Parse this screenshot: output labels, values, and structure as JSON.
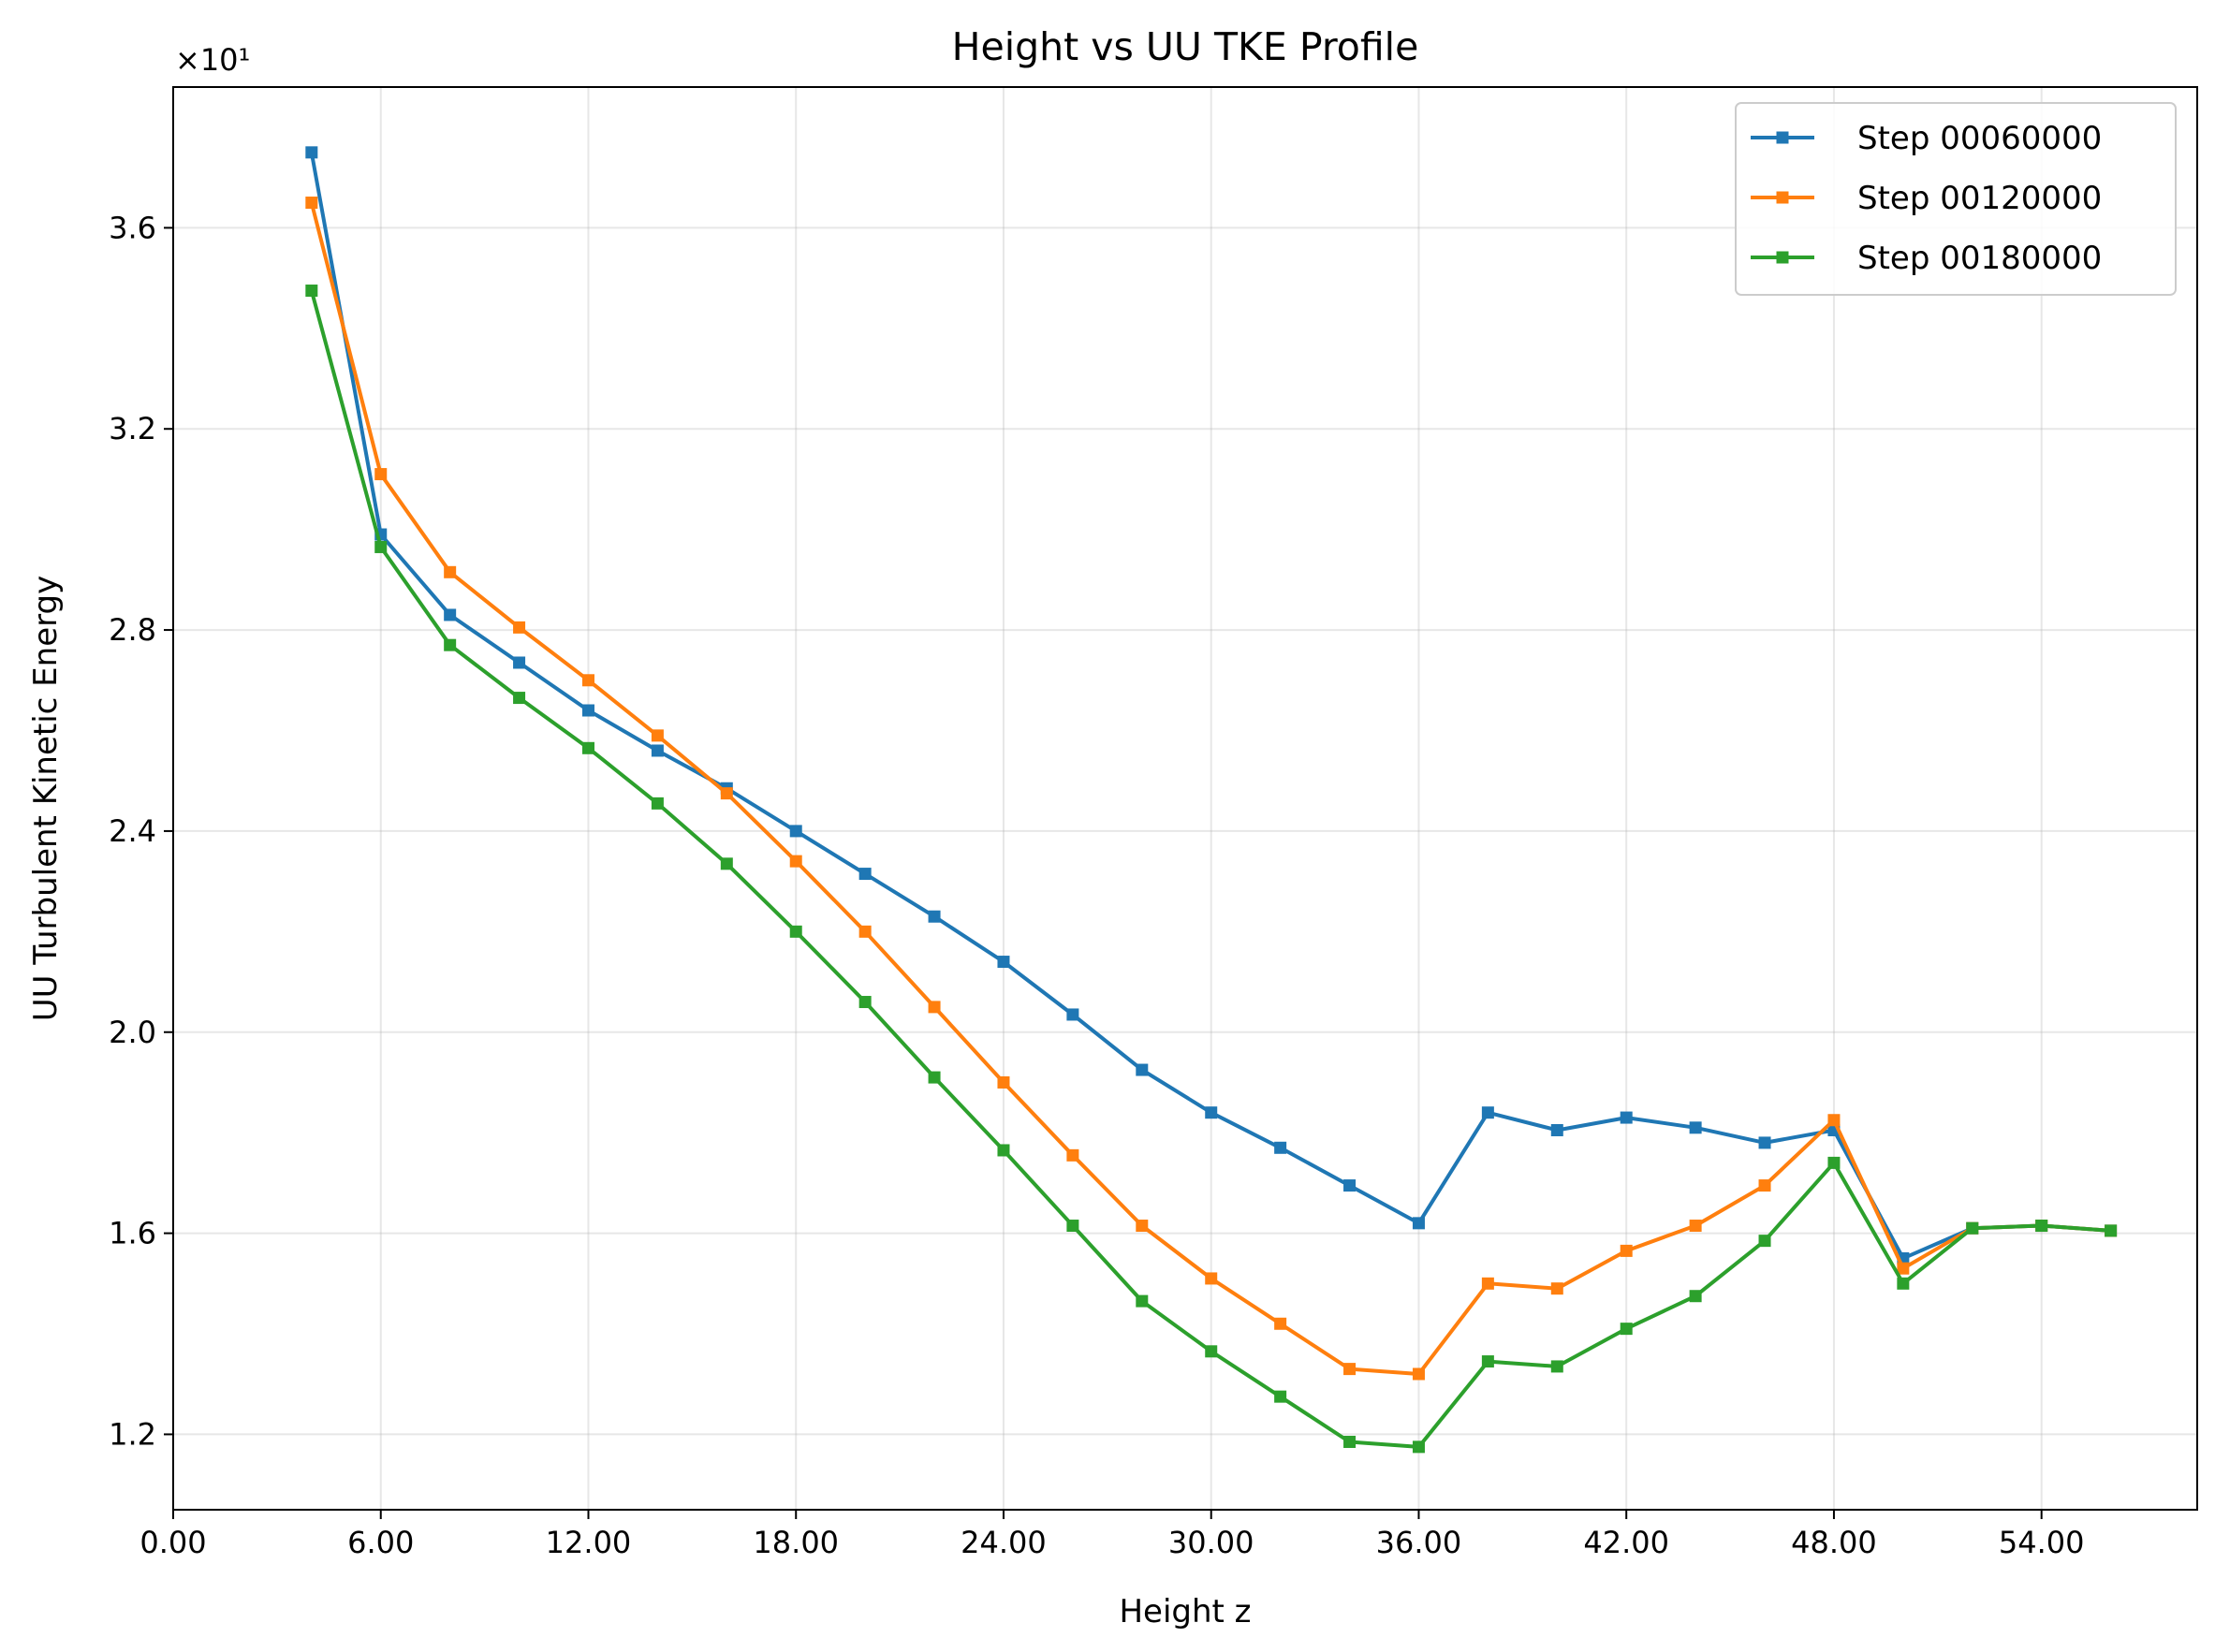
{
  "chart_data": {
    "type": "line",
    "title": "Height vs UU TKE Profile",
    "xlabel": "Height z",
    "ylabel": "UU Turbulent Kinetic Energy",
    "y_multiplier_label": "×10¹",
    "y_multiplier": 10,
    "xlim": [
      0,
      58.5
    ],
    "ylim": [
      1.05,
      3.88
    ],
    "x_ticks": [
      0,
      6,
      12,
      18,
      24,
      30,
      36,
      42,
      48,
      54
    ],
    "x_tick_labels": [
      "0.00",
      "6.00",
      "12.00",
      "18.00",
      "24.00",
      "30.00",
      "36.00",
      "42.00",
      "48.00",
      "54.00"
    ],
    "y_ticks": [
      1.2,
      1.6,
      2.0,
      2.4,
      2.8,
      3.2,
      3.6
    ],
    "y_tick_labels": [
      "1.2",
      "1.6",
      "2.0",
      "2.4",
      "2.8",
      "3.2",
      "3.6"
    ],
    "grid": true,
    "legend_position": "top-right",
    "x": [
      4,
      6,
      8,
      10,
      12,
      14,
      16,
      18,
      20,
      22,
      24,
      26,
      28,
      30,
      32,
      34,
      36,
      38,
      40,
      42,
      44,
      46,
      48,
      50,
      52,
      54,
      56
    ],
    "series": [
      {
        "name": "Step 00060000",
        "color": "#1f77b4",
        "values": [
          3.75,
          2.99,
          2.83,
          2.735,
          2.64,
          2.56,
          2.485,
          2.4,
          2.315,
          2.23,
          2.14,
          2.035,
          1.925,
          1.84,
          1.77,
          1.695,
          1.62,
          1.84,
          1.805,
          1.83,
          1.81,
          1.78,
          1.805,
          1.55,
          1.61,
          1.615,
          1.605
        ]
      },
      {
        "name": "Step 00120000",
        "color": "#ff7f0e",
        "values": [
          3.65,
          3.11,
          2.915,
          2.805,
          2.7,
          2.59,
          2.475,
          2.34,
          2.2,
          2.05,
          1.9,
          1.755,
          1.615,
          1.51,
          1.42,
          1.33,
          1.32,
          1.5,
          1.49,
          1.565,
          1.615,
          1.695,
          1.825,
          1.53,
          1.61,
          1.615,
          1.605
        ]
      },
      {
        "name": "Step 00180000",
        "color": "#2ca02c",
        "values": [
          3.475,
          2.965,
          2.77,
          2.665,
          2.565,
          2.455,
          2.335,
          2.2,
          2.06,
          1.91,
          1.765,
          1.615,
          1.465,
          1.365,
          1.275,
          1.185,
          1.175,
          1.345,
          1.335,
          1.41,
          1.475,
          1.585,
          1.74,
          1.5,
          1.61,
          1.615,
          1.605
        ]
      }
    ]
  }
}
